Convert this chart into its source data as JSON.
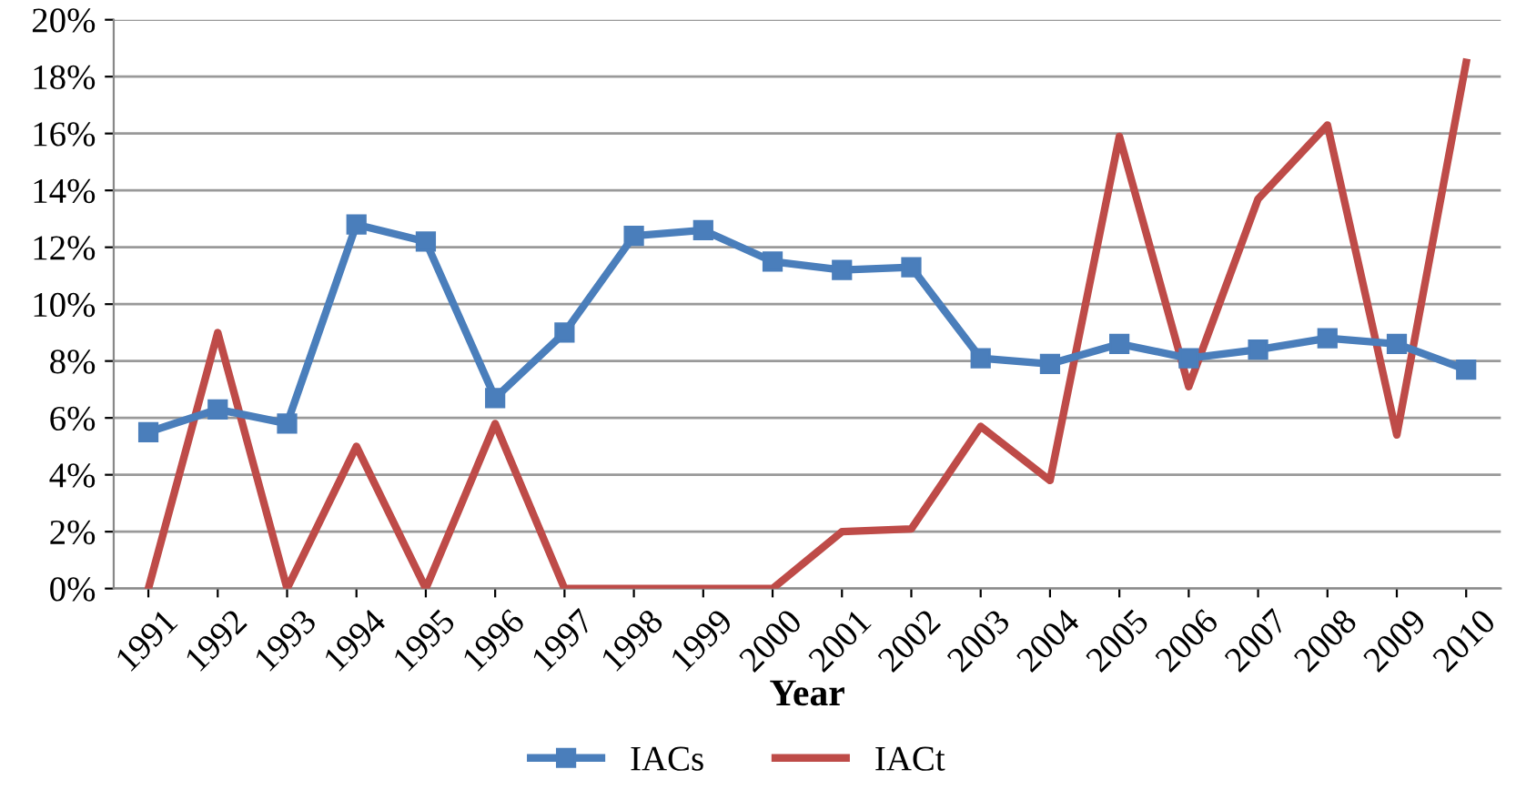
{
  "chart_data": {
    "type": "line",
    "xlabel": "Year",
    "categories": [
      "1991",
      "1992",
      "1993",
      "1994",
      "1995",
      "1996",
      "1997",
      "1998",
      "1999",
      "2000",
      "2001",
      "2002",
      "2003",
      "2004",
      "2005",
      "2006",
      "2007",
      "2008",
      "2009",
      "2010"
    ],
    "series": [
      {
        "name": "IACs",
        "color": "#4a7ebb",
        "marker": "square",
        "values": [
          5.5,
          6.3,
          5.8,
          12.8,
          12.2,
          6.7,
          9.0,
          12.4,
          12.6,
          11.5,
          11.2,
          11.3,
          8.1,
          7.9,
          8.6,
          8.1,
          8.4,
          8.8,
          8.6,
          7.7
        ]
      },
      {
        "name": "IACt",
        "color": "#be4b48",
        "marker": "none",
        "values": [
          0,
          9.0,
          0,
          5.0,
          0,
          5.8,
          0,
          0,
          0,
          0,
          2.0,
          2.1,
          5.7,
          3.8,
          15.9,
          7.1,
          13.7,
          16.3,
          5.4,
          18.5
        ]
      }
    ],
    "ylim": [
      0,
      20
    ],
    "yticks": [
      {
        "value": 0,
        "label": "0%"
      },
      {
        "value": 2,
        "label": "2%"
      },
      {
        "value": 4,
        "label": "4%"
      },
      {
        "value": 6,
        "label": "6%"
      },
      {
        "value": 8,
        "label": "8%"
      },
      {
        "value": 10,
        "label": "10%"
      },
      {
        "value": 12,
        "label": "12%"
      },
      {
        "value": 14,
        "label": "14%"
      },
      {
        "value": 16,
        "label": "16%"
      },
      {
        "value": 18,
        "label": "18%"
      },
      {
        "value": 20,
        "label": "20%"
      }
    ],
    "grid": "y",
    "legend": "bottom",
    "line_style": "solid"
  }
}
